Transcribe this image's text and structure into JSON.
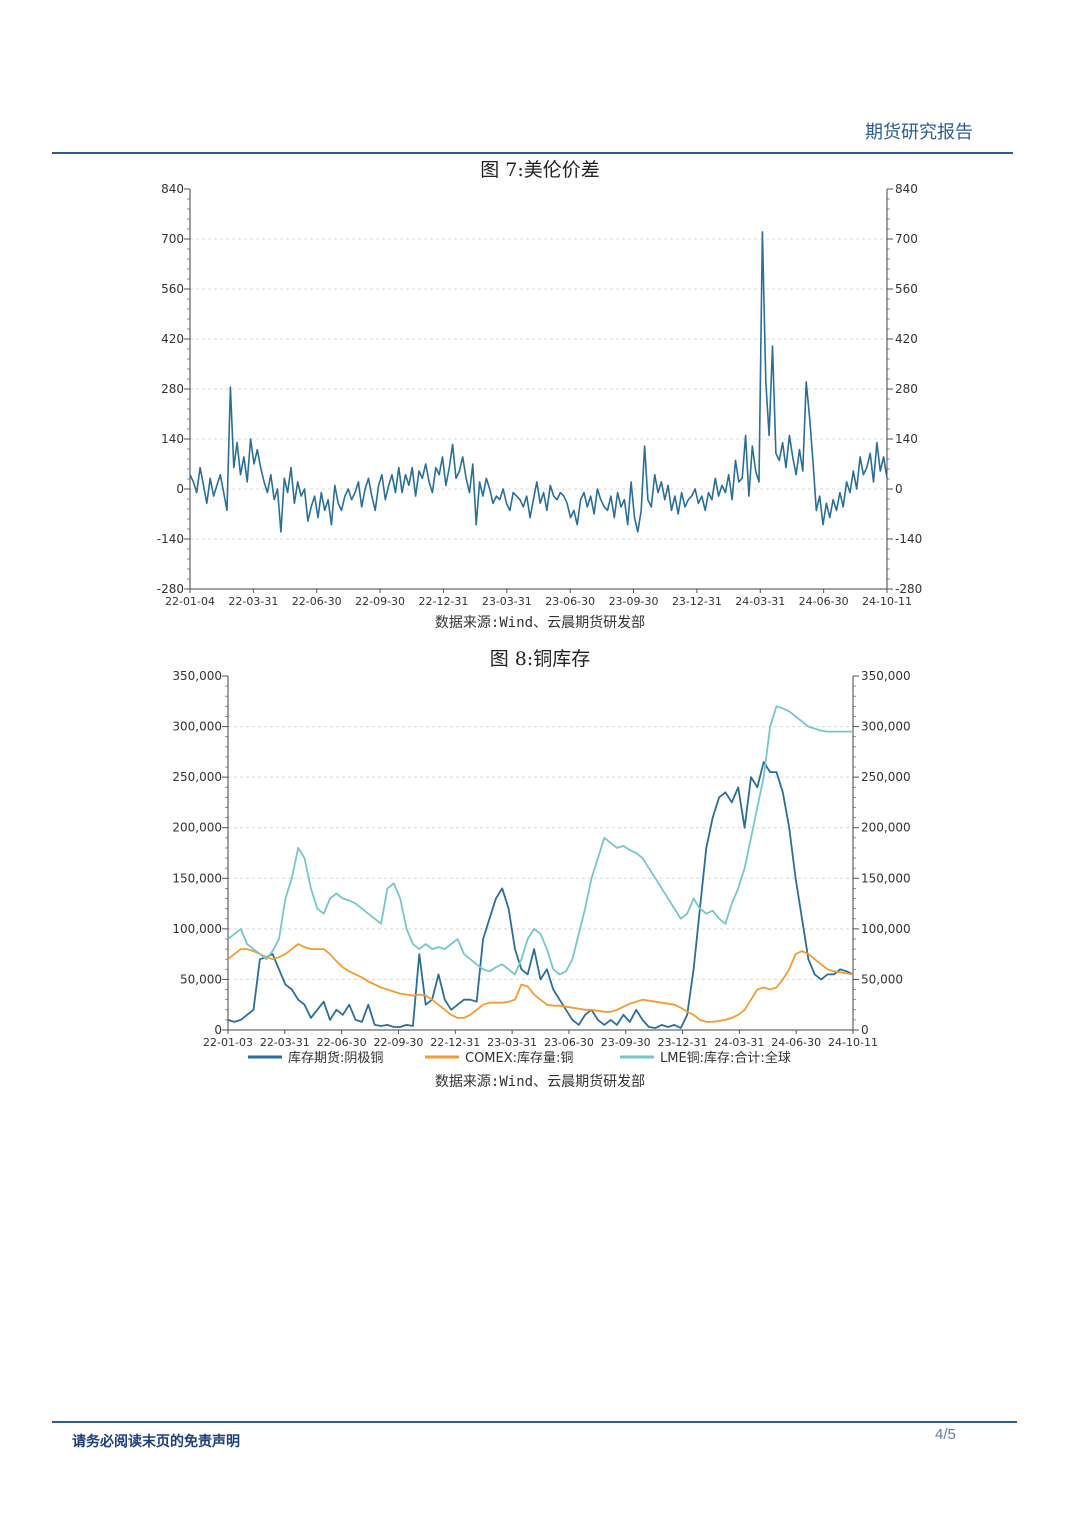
{
  "header": {
    "title": "期货研究报告"
  },
  "colors": {
    "header_blue": "#2d5d93",
    "line1": "#2a6f97",
    "line_orange": "#f39c32",
    "line_teal": "#76c7c9"
  },
  "figure7": {
    "title": "图 7:美伦价差",
    "source": "数据来源:Wind、云晨期货研发部"
  },
  "figure8": {
    "title": "图 8:铜库存",
    "source": "数据来源:Wind、云晨期货研发部",
    "legend": [
      "库存期货:阴极铜",
      "COMEX:库存量:铜",
      "LME铜:库存:合计:全球"
    ]
  },
  "footer": {
    "disclaimer": "请务必阅读末页的免责声明",
    "page": "4/5"
  },
  "chart_data": [
    {
      "type": "line",
      "title": "美伦价差",
      "ylim": [
        -280,
        840
      ],
      "y_ticks": [
        "840",
        "700",
        "560",
        "420",
        "280",
        "140",
        "0",
        "-140",
        "-280"
      ],
      "x_ticks": [
        "22-01-04",
        "22-03-31",
        "22-06-30",
        "22-09-30",
        "22-12-31",
        "23-03-31",
        "23-06-30",
        "23-09-30",
        "23-12-31",
        "24-03-31",
        "24-06-30",
        "24-10-11"
      ],
      "grid": true,
      "series": [
        {
          "values": [
            40,
            20,
            -10,
            60,
            10,
            -40,
            30,
            -20,
            10,
            40,
            -10,
            -60,
            285,
            60,
            130,
            40,
            90,
            20,
            140,
            70,
            110,
            60,
            20,
            -10,
            40,
            -30,
            0,
            -120,
            30,
            -10,
            60,
            -40,
            20,
            -20,
            0,
            -90,
            -50,
            -20,
            -80,
            -10,
            -60,
            -30,
            -100,
            10,
            -40,
            -60,
            -20,
            0,
            -30,
            -10,
            20,
            -50,
            0,
            30,
            -20,
            -60,
            10,
            40,
            -30,
            10,
            40,
            -10,
            60,
            -10,
            40,
            10,
            60,
            -20,
            50,
            30,
            70,
            20,
            -10,
            60,
            40,
            90,
            10,
            60,
            125,
            30,
            50,
            90,
            30,
            -10,
            70,
            -100,
            20,
            -20,
            30,
            0,
            -40,
            -20,
            -30,
            0,
            -40,
            -60,
            -10,
            -20,
            -30,
            -50,
            -20,
            -80,
            -30,
            20,
            -40,
            -10,
            -60,
            10,
            -20,
            -30,
            -10,
            -20,
            -40,
            -80,
            -60,
            -100,
            -30,
            -10,
            -50,
            -20,
            -70,
            0,
            -30,
            -50,
            -60,
            -20,
            -80,
            -10,
            -50,
            -30,
            -100,
            20,
            -80,
            -120,
            -60,
            120,
            -30,
            -50,
            40,
            -10,
            20,
            -30,
            10,
            -60,
            -20,
            -70,
            -10,
            -50,
            -30,
            -20,
            0,
            -40,
            -20,
            -60,
            -10,
            -30,
            30,
            -20,
            10,
            -10,
            40,
            -30,
            80,
            20,
            30,
            150,
            -20,
            120,
            50,
            20,
            720,
            300,
            150,
            400,
            100,
            80,
            130,
            60,
            150,
            90,
            40,
            110,
            50,
            300,
            200,
            80,
            -60,
            -20,
            -100,
            -40,
            -80,
            -30,
            -60,
            -10,
            -50,
            20,
            -10,
            50,
            0,
            90,
            40,
            60,
            100,
            20,
            130,
            50,
            90,
            30
          ]
        }
      ]
    },
    {
      "type": "line",
      "title": "铜库存",
      "ylim": [
        0,
        350000
      ],
      "y_ticks": [
        "350,000",
        "300,000",
        "250,000",
        "200,000",
        "150,000",
        "100,000",
        "50,000",
        "0"
      ],
      "x_ticks": [
        "22-01-03",
        "22-03-31",
        "22-06-30",
        "22-09-30",
        "22-12-31",
        "23-03-31",
        "23-06-30",
        "23-09-30",
        "23-12-31",
        "24-03-31",
        "24-06-30",
        "24-10-11"
      ],
      "grid": true,
      "legend_position": "bottom",
      "series": [
        {
          "name": "库存期货:阴极铜",
          "values": [
            10000,
            8000,
            10000,
            15000,
            20000,
            70000,
            72000,
            75000,
            60000,
            45000,
            40000,
            30000,
            25000,
            12000,
            20000,
            28000,
            10000,
            20000,
            15000,
            25000,
            10000,
            8000,
            25000,
            5000,
            4000,
            5000,
            3000,
            3000,
            5000,
            4000,
            75000,
            25000,
            30000,
            55000,
            30000,
            20000,
            25000,
            30000,
            30000,
            28000,
            90000,
            110000,
            130000,
            140000,
            120000,
            80000,
            60000,
            55000,
            80000,
            50000,
            60000,
            40000,
            30000,
            20000,
            10000,
            5000,
            15000,
            20000,
            10000,
            5000,
            10000,
            5000,
            15000,
            8000,
            20000,
            10000,
            3000,
            2000,
            5000,
            3000,
            5000,
            2000,
            15000,
            60000,
            120000,
            180000,
            210000,
            230000,
            235000,
            225000,
            240000,
            200000,
            250000,
            240000,
            265000,
            255000,
            255000,
            235000,
            200000,
            150000,
            110000,
            70000,
            55000,
            50000,
            55000,
            55000,
            60000,
            58000,
            55000
          ]
        },
        {
          "name": "COMEX:库存量:铜",
          "values": [
            70000,
            75000,
            80000,
            80000,
            78000,
            75000,
            72000,
            70000,
            72000,
            75000,
            80000,
            85000,
            82000,
            80000,
            80000,
            80000,
            75000,
            68000,
            62000,
            58000,
            55000,
            52000,
            48000,
            45000,
            42000,
            40000,
            38000,
            36000,
            35000,
            34000,
            35000,
            34000,
            30000,
            25000,
            20000,
            15000,
            12000,
            12000,
            15000,
            20000,
            25000,
            27000,
            27000,
            27000,
            28000,
            30000,
            45000,
            43000,
            35000,
            30000,
            25000,
            24000,
            24000,
            23000,
            22000,
            21000,
            20000,
            20000,
            19000,
            18000,
            18000,
            20000,
            23000,
            26000,
            28000,
            30000,
            29000,
            28000,
            27000,
            26000,
            25000,
            22000,
            18000,
            15000,
            10000,
            8000,
            8000,
            9000,
            10000,
            12000,
            15000,
            20000,
            30000,
            40000,
            42000,
            40000,
            42000,
            50000,
            60000,
            75000,
            78000,
            75000,
            70000,
            65000,
            60000,
            58000,
            57000,
            56000,
            55000
          ]
        },
        {
          "name": "LME铜:库存:合计:全球",
          "values": [
            90000,
            95000,
            100000,
            85000,
            80000,
            75000,
            70000,
            78000,
            90000,
            130000,
            150000,
            180000,
            170000,
            140000,
            120000,
            115000,
            130000,
            135000,
            130000,
            128000,
            125000,
            120000,
            115000,
            110000,
            105000,
            140000,
            145000,
            130000,
            100000,
            85000,
            80000,
            85000,
            80000,
            82000,
            80000,
            85000,
            90000,
            75000,
            70000,
            65000,
            60000,
            58000,
            62000,
            65000,
            60000,
            55000,
            70000,
            90000,
            100000,
            95000,
            80000,
            60000,
            55000,
            58000,
            70000,
            95000,
            120000,
            150000,
            170000,
            190000,
            185000,
            180000,
            182000,
            178000,
            175000,
            170000,
            160000,
            150000,
            140000,
            130000,
            120000,
            110000,
            115000,
            130000,
            120000,
            115000,
            118000,
            110000,
            105000,
            125000,
            140000,
            160000,
            190000,
            220000,
            250000,
            300000,
            320000,
            318000,
            315000,
            310000,
            305000,
            300000,
            298000,
            296000,
            295000,
            295000,
            295000,
            295000,
            295000
          ]
        }
      ]
    }
  ]
}
